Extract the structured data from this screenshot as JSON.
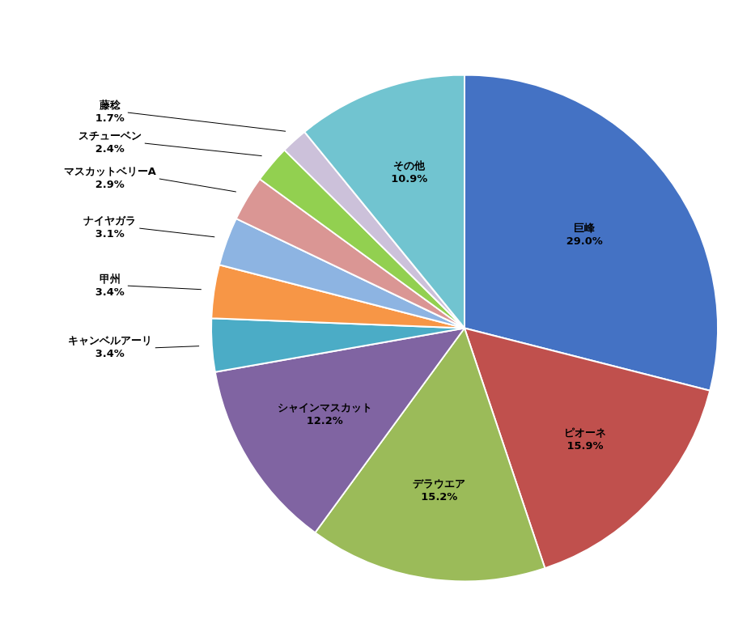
{
  "chart_data": {
    "type": "pie",
    "categories": [
      "巨峰",
      "ピオーネ",
      "デラウエア",
      "シャインマスカット",
      "キャンベルアーリ",
      "甲州",
      "ナイヤガラ",
      "マスカットベリーA",
      "スチューベン",
      "藤稔",
      "その他"
    ],
    "values": [
      29.0,
      15.9,
      15.2,
      12.2,
      3.4,
      3.4,
      3.1,
      2.9,
      2.4,
      1.7,
      10.9
    ],
    "value_labels": [
      "29.0%",
      "15.9%",
      "15.2%",
      "12.2%",
      "3.4%",
      "3.4%",
      "3.1%",
      "2.9%",
      "2.4%",
      "1.7%",
      "10.9%"
    ],
    "colors": [
      "#4472C4",
      "#C0504D",
      "#9BBB59",
      "#8064A2",
      "#4BACC6",
      "#F79646",
      "#8DB4E2",
      "#DA9694",
      "#92D050",
      "#CCC1DA",
      "#71C4D0"
    ],
    "data_labels": true
  }
}
